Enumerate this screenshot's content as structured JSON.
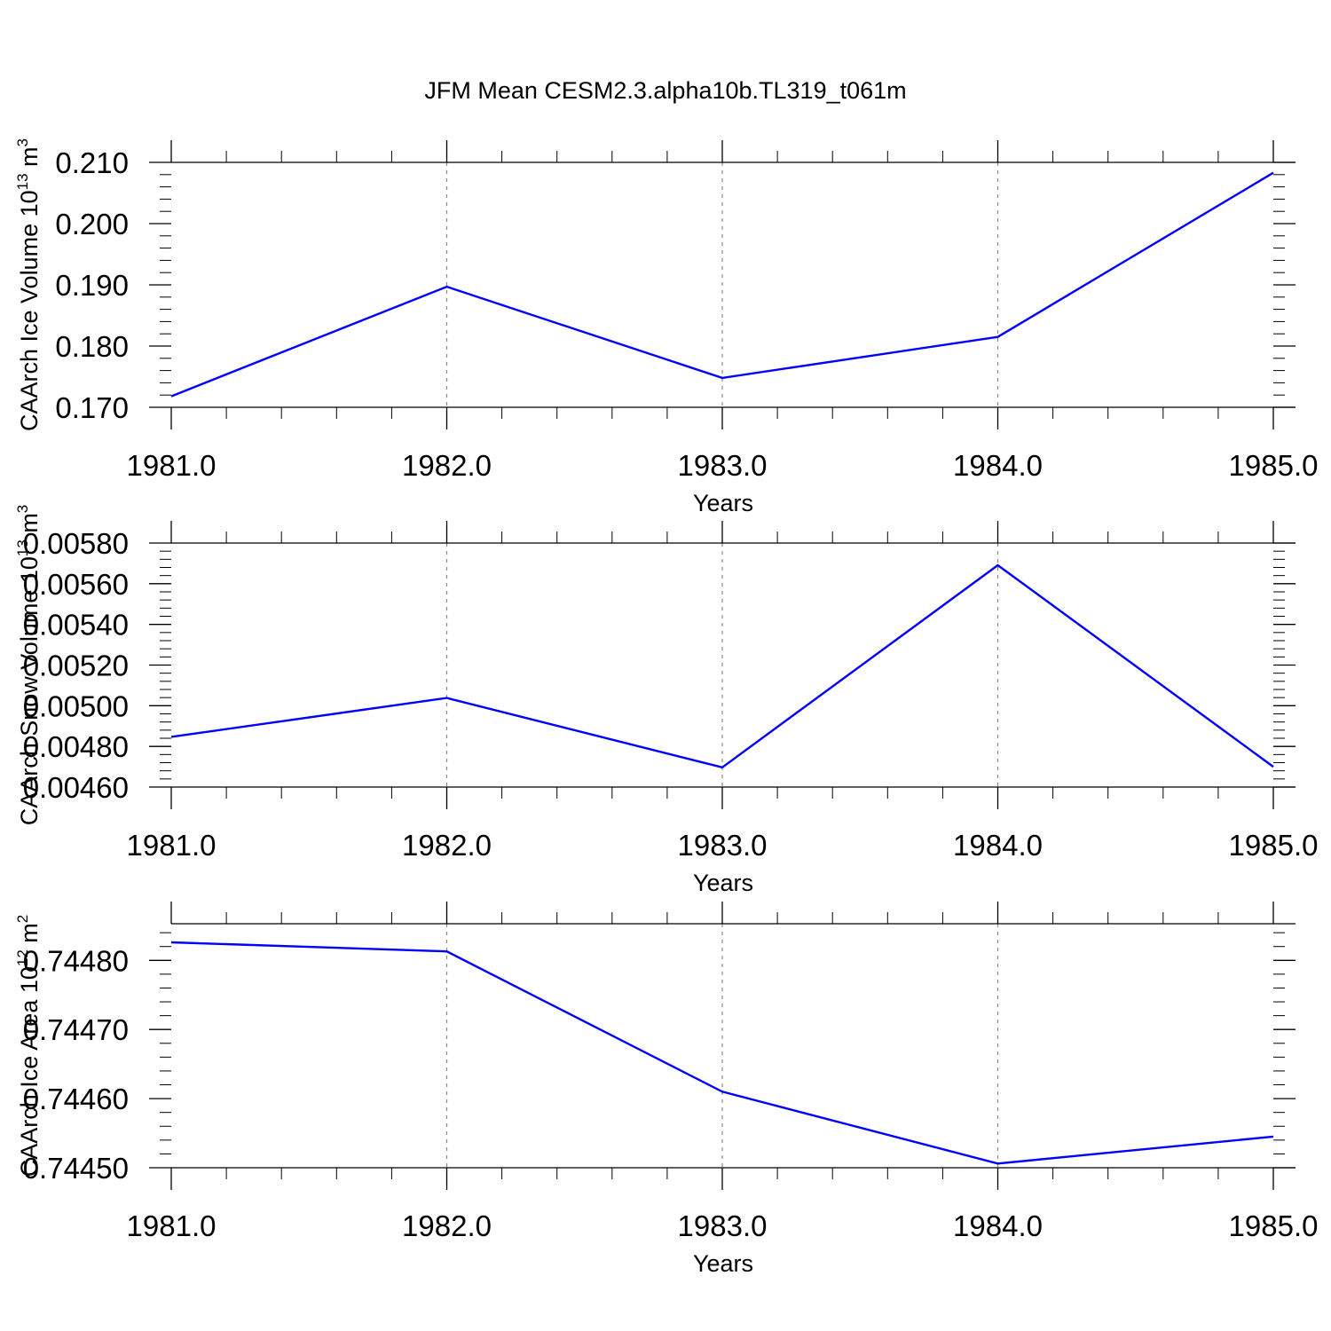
{
  "figure": {
    "title": "JFM Mean CESM2.3.alpha10b.TL319_t061m"
  },
  "colors": {
    "series": "#0000ff",
    "axis": "#000000",
    "grid": "#888888"
  },
  "chart_data": [
    {
      "type": "line",
      "title": "",
      "xlabel": "Years",
      "ylabel": "CAArch Ice Volume 10",
      "ylabel_superscript": "13",
      "ylabel_unit": " m",
      "ylabel_unit_superscript": "3",
      "x": [
        1981.0,
        1982.0,
        1983.0,
        1984.0,
        1985.0
      ],
      "xlim": [
        1981.0,
        1985.0
      ],
      "xticks": [
        "1981.0",
        "1982.0",
        "1983.0",
        "1984.0",
        "1985.0"
      ],
      "ylim": [
        0.17,
        0.21
      ],
      "yticks": [
        "0.170",
        "0.180",
        "0.190",
        "0.200",
        "0.210"
      ],
      "series": [
        {
          "values": [
            0.1718,
            0.1897,
            0.1748,
            0.1815,
            0.2083
          ]
        }
      ],
      "grid": "vertical dashed at major x ticks"
    },
    {
      "type": "line",
      "title": "",
      "xlabel": "Years",
      "ylabel": "CAArch Snow Volume 10",
      "ylabel_superscript": "13",
      "ylabel_unit": " m",
      "ylabel_unit_superscript": "3",
      "x": [
        1981.0,
        1982.0,
        1983.0,
        1984.0,
        1985.0
      ],
      "xlim": [
        1981.0,
        1985.0
      ],
      "xticks": [
        "1981.0",
        "1982.0",
        "1983.0",
        "1984.0",
        "1985.0"
      ],
      "ylim": [
        0.0046,
        0.0058
      ],
      "yticks": [
        "0.00460",
        "0.00480",
        "0.00500",
        "0.00520",
        "0.00540",
        "0.00560",
        "0.00580"
      ],
      "series": [
        {
          "values": [
            0.004847,
            0.005038,
            0.004697,
            0.005691,
            0.0047
          ]
        }
      ],
      "grid": "vertical dashed at major x ticks"
    },
    {
      "type": "line",
      "title": "",
      "xlabel": "Years",
      "ylabel": "CAArch Ice Area 10",
      "ylabel_superscript": "12",
      "ylabel_unit": " m",
      "ylabel_unit_superscript": "2",
      "x": [
        1981.0,
        1982.0,
        1983.0,
        1984.0,
        1985.0
      ],
      "xlim": [
        1981.0,
        1985.0
      ],
      "xticks": [
        "1981.0",
        "1982.0",
        "1983.0",
        "1984.0",
        "1985.0"
      ],
      "ylim": [
        0.7445,
        0.744853
      ],
      "yticks": [
        "0.74450",
        "0.74460",
        "0.74470",
        "0.74480"
      ],
      "series": [
        {
          "values": [
            0.744826,
            0.744813,
            0.74461,
            0.744506,
            0.744545
          ]
        }
      ],
      "grid": "vertical dashed at major x ticks"
    }
  ]
}
